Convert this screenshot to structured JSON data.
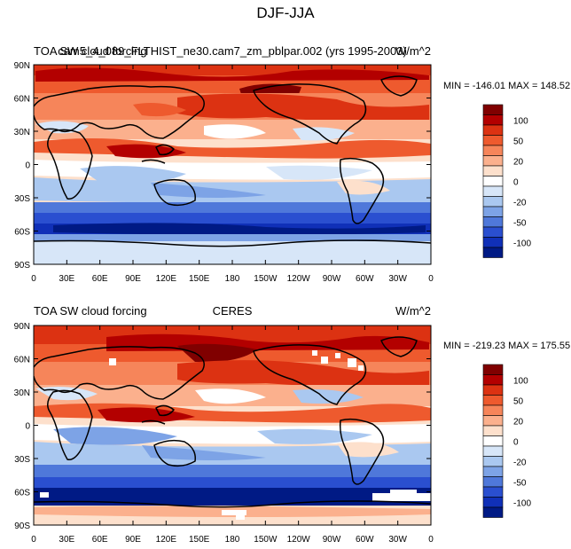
{
  "figure": {
    "title": "DJF-JJA"
  },
  "colors": {
    "levels": [
      "#800000",
      "#b30000",
      "#dc3212",
      "#ee5a2e",
      "#f6855a",
      "#fbb08d",
      "#fde0cc",
      "#ffffff",
      "#d7e6f8",
      "#aac8f0",
      "#7da3e6",
      "#4f78da",
      "#2a4fd0",
      "#1030b8",
      "#001a85"
    ]
  },
  "colorbar": {
    "tick_labels": [
      "100",
      "50",
      "20",
      "0",
      "-20",
      "-50",
      "-100"
    ]
  },
  "panels": [
    {
      "id": "model",
      "left_title": "TOA SW cloud forcing",
      "center_title": "cam5_4_089_FLTHIST_ne30.cam7_zm_pblpar.002 (yrs 1995-2003)",
      "right_title": "W/m^2",
      "minmax": "MIN = -146.01  MAX = 148.52",
      "lat_labels": [
        "90N",
        "60N",
        "30N",
        "0",
        "30S",
        "60S",
        "90S"
      ],
      "lon_labels": [
        "0",
        "30E",
        "60E",
        "90E",
        "120E",
        "150E",
        "180",
        "150W",
        "120W",
        "90W",
        "60W",
        "30W",
        "0"
      ],
      "data_range": {
        "min": -146.01,
        "max": 148.52
      }
    },
    {
      "id": "obs",
      "left_title": "TOA SW cloud forcing",
      "center_title": "CERES",
      "right_title": "W/m^2",
      "minmax": "MIN = -219.23  MAX = 175.55",
      "lat_labels": [
        "90N",
        "60N",
        "30N",
        "0",
        "30S",
        "60S",
        "90S"
      ],
      "lon_labels": [
        "0",
        "30E",
        "60E",
        "90E",
        "120E",
        "150E",
        "180",
        "150W",
        "120W",
        "90W",
        "60W",
        "30W",
        "0"
      ],
      "data_range": {
        "min": -219.23,
        "max": 175.55
      }
    }
  ]
}
